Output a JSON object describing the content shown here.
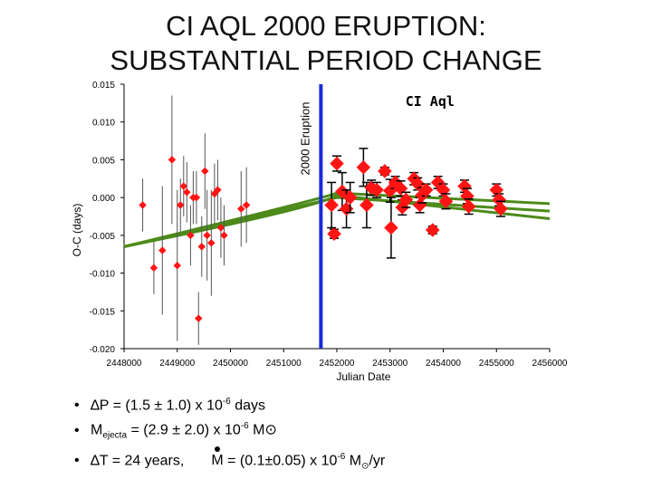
{
  "title_line1": "CI AQL 2000 ERUPTION:",
  "title_line2": "SUBSTANTIAL PERIOD CHANGE",
  "chart_data": {
    "type": "scatter",
    "title": "CI Aql",
    "xlabel": "Julian Date",
    "ylabel": "O-C (days)",
    "xlim": [
      2448000,
      2456000
    ],
    "ylim": [
      -0.02,
      0.015
    ],
    "xticks": [
      2448000,
      2449000,
      2450000,
      2451000,
      2452000,
      2453000,
      2454000,
      2455000,
      2456000
    ],
    "xtick_labels": [
      "2448000",
      "2449000",
      "2450000",
      "2451000",
      "2452000",
      "2453000",
      "2454000",
      "2455000",
      "2456000"
    ],
    "yticks": [
      0.015,
      0.01,
      0.005,
      0.0,
      -0.005,
      -0.01,
      -0.015,
      -0.02
    ],
    "ytick_labels": [
      "0.015",
      "0.010",
      "0.005",
      "0.000",
      "-0.005",
      "-0.010",
      "-0.015",
      "-0.020"
    ],
    "eruption": {
      "x": 2451700,
      "label": "2000 Eruption"
    },
    "points_small": [
      {
        "x": 2448350,
        "y": -0.001,
        "err": 0.0035
      },
      {
        "x": 2448560,
        "y": -0.0093,
        "err": 0.0035
      },
      {
        "x": 2448720,
        "y": -0.007,
        "err": 0.0085
      },
      {
        "x": 2448900,
        "y": 0.005,
        "err": 0.0085
      },
      {
        "x": 2449000,
        "y": -0.009,
        "err": 0.01
      },
      {
        "x": 2449060,
        "y": -0.001,
        "err": 0.0035
      },
      {
        "x": 2449120,
        "y": 0.0015,
        "err": 0.004
      },
      {
        "x": 2449180,
        "y": 0.0007,
        "err": 0.004
      },
      {
        "x": 2449250,
        "y": -0.005,
        "err": 0.004
      },
      {
        "x": 2449300,
        "y": 0.0,
        "err": 0.0035
      },
      {
        "x": 2449360,
        "y": 0.0,
        "err": 0.0035
      },
      {
        "x": 2449400,
        "y": -0.016,
        "err": 0.0035
      },
      {
        "x": 2449460,
        "y": -0.0065,
        "err": 0.004
      },
      {
        "x": 2449520,
        "y": 0.0035,
        "err": 0.005
      },
      {
        "x": 2449560,
        "y": -0.005,
        "err": 0.006
      },
      {
        "x": 2449640,
        "y": -0.006,
        "err": 0.007
      },
      {
        "x": 2449700,
        "y": 0.0005,
        "err": 0.004
      },
      {
        "x": 2449760,
        "y": 0.001,
        "err": 0.004
      },
      {
        "x": 2449820,
        "y": -0.004,
        "err": 0.004
      },
      {
        "x": 2449880,
        "y": -0.005,
        "err": 0.004
      },
      {
        "x": 2450200,
        "y": -0.0015,
        "err": 0.005
      },
      {
        "x": 2450300,
        "y": -0.001,
        "err": 0.005
      }
    ],
    "points_large": [
      {
        "x": 2452000,
        "y": 0.0045,
        "err": 0.001
      },
      {
        "x": 2451950,
        "y": -0.0048,
        "err": 0.0006
      },
      {
        "x": 2451900,
        "y": -0.001,
        "err": 0.003
      },
      {
        "x": 2452100,
        "y": 0.0008,
        "err": 0.0025
      },
      {
        "x": 2452180,
        "y": -0.0015,
        "err": 0.0025
      },
      {
        "x": 2452250,
        "y": 0.0,
        "err": 0.002
      },
      {
        "x": 2452500,
        "y": 0.004,
        "err": 0.0025
      },
      {
        "x": 2452560,
        "y": -0.001,
        "err": 0.003
      },
      {
        "x": 2452650,
        "y": 0.0013,
        "err": 0.001
      },
      {
        "x": 2452750,
        "y": 0.001,
        "err": 0.001
      },
      {
        "x": 2452900,
        "y": 0.0035,
        "err": 0.0005
      },
      {
        "x": 2453000,
        "y": 0.0009,
        "err": 0.0015
      },
      {
        "x": 2453020,
        "y": -0.004,
        "err": 0.004
      },
      {
        "x": 2453100,
        "y": 0.002,
        "err": 0.0008
      },
      {
        "x": 2453200,
        "y": 0.0012,
        "err": 0.001
      },
      {
        "x": 2453230,
        "y": -0.0013,
        "err": 0.001
      },
      {
        "x": 2453300,
        "y": -0.0003,
        "err": 0.001
      },
      {
        "x": 2453450,
        "y": 0.0025,
        "err": 0.0008
      },
      {
        "x": 2453520,
        "y": 0.0018,
        "err": 0.0008
      },
      {
        "x": 2453560,
        "y": -0.001,
        "err": 0.001
      },
      {
        "x": 2453600,
        "y": 0.0003,
        "err": 0.001
      },
      {
        "x": 2453680,
        "y": 0.001,
        "err": 0.0008
      },
      {
        "x": 2453800,
        "y": -0.0043,
        "err": 0.0005
      },
      {
        "x": 2453900,
        "y": 0.002,
        "err": 0.0008
      },
      {
        "x": 2454000,
        "y": 0.001,
        "err": 0.0008
      },
      {
        "x": 2454050,
        "y": -0.0005,
        "err": 0.001
      },
      {
        "x": 2454400,
        "y": 0.0015,
        "err": 0.0008
      },
      {
        "x": 2454450,
        "y": 0.0002,
        "err": 0.001
      },
      {
        "x": 2454480,
        "y": -0.0012,
        "err": 0.001
      },
      {
        "x": 2455000,
        "y": 0.001,
        "err": 0.0008
      },
      {
        "x": 2455050,
        "y": -0.0003,
        "err": 0.0008
      },
      {
        "x": 2455080,
        "y": -0.0015,
        "err": 0.001
      }
    ],
    "fit_curves": [
      {
        "x": [
          2448000,
          2451700,
          2452000,
          2456000
        ],
        "y": [
          -0.0065,
          -0.0005,
          0.0,
          -0.0018
        ]
      },
      {
        "x": [
          2448000,
          2451700,
          2452000,
          2456000
        ],
        "y": [
          -0.0065,
          -0.0012,
          0.0003,
          -0.0028
        ]
      },
      {
        "x": [
          2448000,
          2451700,
          2452000,
          2456000
        ],
        "y": [
          -0.0065,
          -0.0002,
          0.0006,
          -0.0008
        ]
      }
    ],
    "colors": {
      "marker": "#ff1414",
      "fit": "#4c8a1a",
      "eruption": "#1a2ad8",
      "errbar": "#000000"
    }
  },
  "bullets": {
    "b1": {
      "prefix": "∆P = (1.5 ± 1.0) x 10",
      "exp": "-6",
      "suffix": " days"
    },
    "b2": {
      "prefix": "M",
      "sub": "ejecta",
      "mid": " = (2.9 ± 2.0) x 10",
      "exp": "-6",
      "suffix": " M",
      "sun": "⊙"
    },
    "b3": {
      "prefix": "∆T = 24 years,",
      "mdot_label": "M",
      "mid": " = (0.1±0.05) x 10",
      "exp": "-6",
      "suffix": " M",
      "sun": "⊙",
      "tail": "/yr"
    }
  }
}
